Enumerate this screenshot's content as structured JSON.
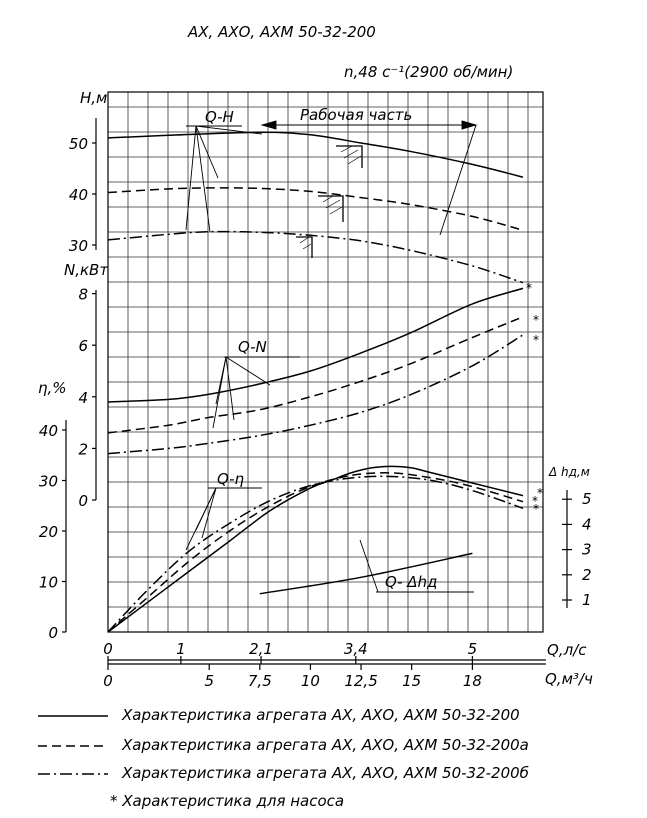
{
  "chart_data": {
    "type": "line",
    "title": "АХ, АХО, АХМ 50-32-200",
    "subtitle": "n,48 с⁻¹(2900 об/мин)",
    "annotations": {
      "working_part": "Рабочая часть",
      "q_h": "Q-H",
      "q_n": "Q-N",
      "q_eta": "Q-η",
      "q_dh": "Q- Δhд"
    },
    "x_axes": [
      {
        "label": "Q,л/с",
        "ticks": [
          "0",
          "1",
          "2,1",
          "3,4",
          "5"
        ],
        "tick_values": [
          0,
          1,
          2.1,
          3.4,
          5
        ]
      },
      {
        "label": "Q,м³/ч",
        "ticks": [
          "0",
          "5",
          "7,5",
          "10",
          "12,5",
          "15",
          "18"
        ],
        "tick_values": [
          0,
          5,
          7.5,
          10,
          12.5,
          15,
          18
        ],
        "xlim": [
          0,
          20.5
        ]
      }
    ],
    "y_axes": [
      {
        "label": "H,м",
        "ticks": [
          "30",
          "40",
          "50"
        ],
        "tick_values": [
          30,
          40,
          50
        ]
      },
      {
        "label": "N,кВт",
        "ticks": [
          "0",
          "2",
          "4",
          "6",
          "8"
        ],
        "tick_values": [
          0,
          2,
          4,
          6,
          8
        ]
      },
      {
        "label": "η,%",
        "ticks": [
          "0",
          "10",
          "20",
          "30",
          "40"
        ],
        "tick_values": [
          0,
          10,
          20,
          30,
          40
        ]
      },
      {
        "label": "Δ hд,м",
        "ticks": [
          "1",
          "2",
          "3",
          "4",
          "5"
        ],
        "tick_values": [
          1,
          2,
          3,
          4,
          5
        ]
      }
    ],
    "grid": true,
    "series": [
      {
        "name": "Q-H",
        "variant": "200",
        "style": "solid",
        "x": [
          0,
          3,
          7.5,
          10,
          12.5,
          15,
          18,
          20.5
        ],
        "y": [
          51.0,
          51.5,
          52.1,
          51.6,
          50.0,
          48.3,
          45.8,
          43.3
        ]
      },
      {
        "name": "Q-H",
        "variant": "200а",
        "style": "dashed",
        "x": [
          0,
          3,
          5,
          7.5,
          10,
          12.5,
          15,
          18,
          20.5
        ],
        "y": [
          40.3,
          41.0,
          41.2,
          41.1,
          40.5,
          39.3,
          37.9,
          35.6,
          32.9
        ]
      },
      {
        "name": "Q-H",
        "variant": "200б",
        "style": "dashdot",
        "x": [
          0,
          3,
          5,
          7.5,
          10,
          12.5,
          15,
          18,
          20.5
        ],
        "y": [
          31.0,
          32.1,
          32.6,
          32.5,
          31.9,
          30.8,
          28.9,
          25.9,
          22.6
        ]
      },
      {
        "name": "Q-N",
        "variant": "200",
        "style": "solid",
        "x": [
          0,
          3,
          5,
          7.5,
          10,
          12.5,
          15,
          18,
          20.5
        ],
        "y": [
          3.8,
          3.9,
          4.1,
          4.5,
          5.0,
          5.7,
          6.5,
          7.6,
          8.2
        ]
      },
      {
        "name": "Q-N",
        "variant": "200а",
        "style": "dashed",
        "x": [
          0,
          3,
          5,
          7.5,
          10,
          12.5,
          15,
          18,
          20.5
        ],
        "y": [
          2.6,
          2.9,
          3.2,
          3.5,
          4.0,
          4.6,
          5.3,
          6.3,
          7.1
        ]
      },
      {
        "name": "Q-N",
        "variant": "200б",
        "style": "dashdot",
        "x": [
          0,
          3,
          5,
          7.5,
          10,
          12.5,
          15,
          18,
          20.5
        ],
        "y": [
          1.8,
          2.0,
          2.2,
          2.5,
          2.9,
          3.4,
          4.1,
          5.2,
          6.4
        ]
      },
      {
        "name": "Q-η",
        "variant": "200",
        "style": "solid",
        "x": [
          0,
          2,
          4,
          6,
          8,
          10,
          11,
          12,
          13,
          14,
          15,
          16,
          18,
          20.5
        ],
        "y": [
          0,
          6,
          12,
          18,
          24,
          28.5,
          30,
          31.5,
          32.5,
          32.8,
          32.5,
          31.5,
          29.5,
          27
        ]
      },
      {
        "name": "Q-η",
        "variant": "200а",
        "style": "dashed",
        "x": [
          0,
          2,
          4,
          6,
          8,
          10,
          12,
          14,
          16,
          18,
          20.5
        ],
        "y": [
          0,
          7,
          14,
          20,
          25,
          28.8,
          31,
          31.5,
          30.5,
          28.8,
          25.8
        ]
      },
      {
        "name": "Q-η",
        "variant": "200б",
        "style": "dashdot",
        "x": [
          0,
          2,
          4,
          6,
          8,
          10,
          12,
          14,
          16,
          18,
          20.5
        ],
        "y": [
          0,
          8.5,
          16,
          21.5,
          26,
          29,
          30.5,
          30.8,
          30,
          28,
          24.5
        ]
      },
      {
        "name": "Q- Δhд",
        "style": "solid",
        "x": [
          7.5,
          12.5,
          18
        ],
        "y": [
          1.25,
          1.9,
          2.85
        ]
      }
    ],
    "legend": [
      {
        "style": "solid",
        "text": "Характеристика агрегата АХ, АХО, АХМ 50-32-200"
      },
      {
        "style": "dashed",
        "text": "Характеристика агрегата АХ, АХО, АХМ 50-32-200а"
      },
      {
        "style": "dashdot",
        "text": "Характеристика агрегата АХ, АХО, АХМ 50-32-200б"
      },
      {
        "style": "asterisk",
        "text": "* Характеристика для насоса"
      }
    ],
    "legend_position": "bottom"
  }
}
